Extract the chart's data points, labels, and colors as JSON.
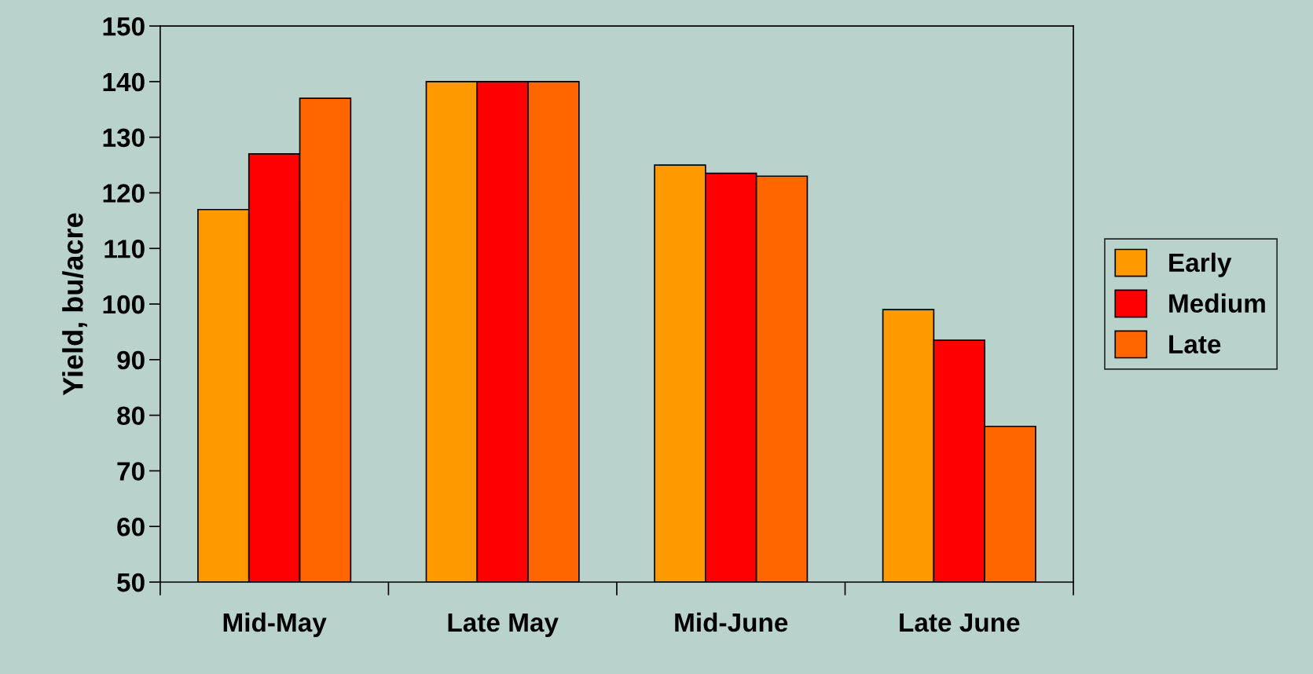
{
  "chart_data": {
    "type": "bar",
    "ylabel": "Yield, bu/acre",
    "categories": [
      "Mid-May",
      "Late May",
      "Mid-June",
      "Late June"
    ],
    "series": [
      {
        "name": "Early",
        "color": "#ff9900",
        "values": [
          117,
          140,
          125,
          99
        ]
      },
      {
        "name": "Medium",
        "color": "#ff0000",
        "values": [
          127,
          140,
          123.5,
          93.5
        ]
      },
      {
        "name": "Late",
        "color": "#ff6600",
        "values": [
          137,
          140,
          123,
          78
        ]
      }
    ],
    "ylim": [
      50,
      150
    ],
    "yticks": [
      50,
      60,
      70,
      80,
      90,
      100,
      110,
      120,
      130,
      140,
      150
    ],
    "grid": false,
    "legend": "right"
  }
}
